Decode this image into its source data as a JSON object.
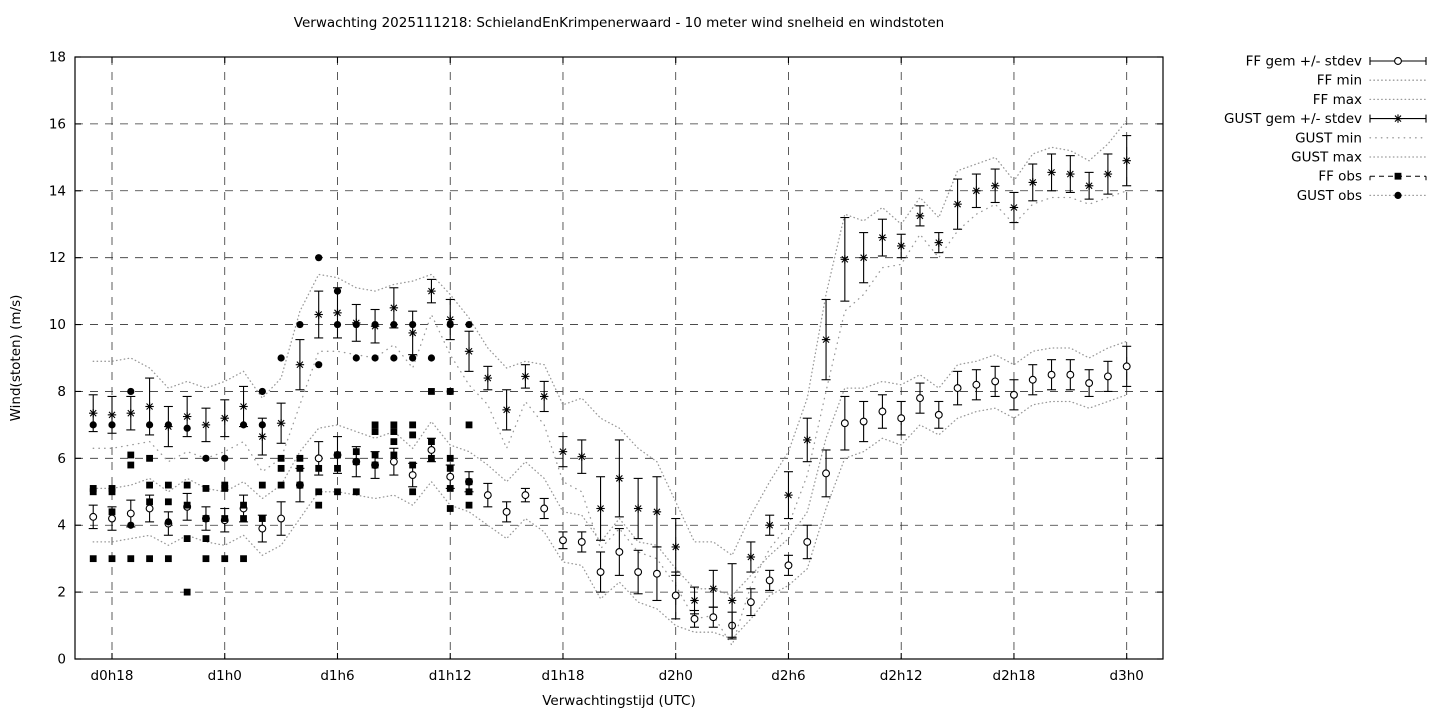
{
  "title": "Verwachting 2025111218: SchielandEnKrimpenerwaard - 10 meter wind snelheid en windstoten",
  "axes": {
    "xlabel": "Verwachtingstijd (UTC)",
    "ylabel": "Wind(stoten) (m/s)",
    "ymin": 0,
    "ymax": 18,
    "ytick_step": 2,
    "grid": true,
    "xticks": [
      {
        "t": 18,
        "label": "d0h18"
      },
      {
        "t": 24,
        "label": "d1h0"
      },
      {
        "t": 30,
        "label": "d1h6"
      },
      {
        "t": 36,
        "label": "d1h12"
      },
      {
        "t": 42,
        "label": "d1h18"
      },
      {
        "t": 48,
        "label": "d2h0"
      },
      {
        "t": 54,
        "label": "d2h6"
      },
      {
        "t": 60,
        "label": "d2h12"
      },
      {
        "t": 66,
        "label": "d2h18"
      },
      {
        "t": 72,
        "label": "d3h0"
      }
    ]
  },
  "legend": {
    "position": "top-right-outside",
    "entries": [
      {
        "label": "FF gem +/- stdev",
        "series": "ff_gem",
        "style": "errorbar-line",
        "marker": "circle-open"
      },
      {
        "label": "FF min",
        "series": "ff_min",
        "style": "dotted",
        "marker": "none"
      },
      {
        "label": "FF max",
        "series": "ff_max",
        "style": "dotted",
        "marker": "none"
      },
      {
        "label": "GUST gem +/- stdev",
        "series": "gust_gem",
        "style": "errorbar-line",
        "marker": "asterisk"
      },
      {
        "label": "GUST min",
        "series": "gust_min",
        "style": "dotted-sparse",
        "marker": "none"
      },
      {
        "label": "GUST max",
        "series": "gust_max",
        "style": "dotted",
        "marker": "none"
      },
      {
        "label": "FF obs",
        "series": "ff_obs",
        "style": "dashed",
        "marker": "square-filled"
      },
      {
        "label": "GUST obs",
        "series": "gust_obs",
        "style": "dotted",
        "marker": "circle-filled"
      }
    ]
  },
  "colors": {
    "axis": "#000000",
    "grid": "#333333",
    "series": "#000000",
    "envelope": "#999999"
  },
  "chart_data": {
    "type": "line",
    "title": "Verwachting 2025111218: SchielandEnKrimpenerwaard - 10 meter wind snelheid en windstoten",
    "xlabel": "Verwachtingstijd (UTC)",
    "ylabel": "Wind(stoten) (m/s)",
    "ylim": [
      0,
      18
    ],
    "x_hours_note": "t = forecast hour index; d0h18 -> t=18, d3h0 -> t=72",
    "hour_start": 17,
    "hours": [
      17,
      18,
      19,
      20,
      21,
      22,
      23,
      24,
      25,
      26,
      27,
      28,
      29,
      30,
      31,
      32,
      33,
      34,
      35,
      36,
      37,
      38,
      39,
      40,
      41,
      42,
      43,
      44,
      45,
      46,
      47,
      48,
      49,
      50,
      51,
      52,
      53,
      54,
      55,
      56,
      57,
      58,
      59,
      60,
      61,
      62,
      63,
      64,
      65,
      66,
      67,
      68,
      69,
      70,
      71,
      72
    ],
    "series": [
      {
        "name": "FF gem",
        "key": "ff_gem",
        "values": [
          4.25,
          4.2,
          4.35,
          4.5,
          4.05,
          4.55,
          4.2,
          4.15,
          4.5,
          3.9,
          4.2,
          5.2,
          6.0,
          6.1,
          5.9,
          5.8,
          5.9,
          5.5,
          6.25,
          5.45,
          5.3,
          4.9,
          4.4,
          4.9,
          4.5,
          3.55,
          3.5,
          2.6,
          3.2,
          2.6,
          2.55,
          1.9,
          1.2,
          1.25,
          1.0,
          1.7,
          2.35,
          2.8,
          3.5,
          5.55,
          7.05,
          7.1,
          7.4,
          7.2,
          7.8,
          7.3,
          8.1,
          8.2,
          8.3,
          7.9,
          8.35,
          8.5,
          8.5,
          8.25,
          8.45,
          8.75
        ],
        "stdev": [
          0.35,
          0.35,
          0.4,
          0.4,
          0.35,
          0.4,
          0.35,
          0.35,
          0.4,
          0.4,
          0.5,
          0.5,
          0.5,
          0.55,
          0.45,
          0.4,
          0.4,
          0.35,
          0.35,
          0.35,
          0.3,
          0.35,
          0.3,
          0.2,
          0.3,
          0.25,
          0.3,
          0.6,
          0.7,
          0.65,
          0.8,
          0.7,
          0.25,
          0.3,
          0.4,
          0.4,
          0.3,
          0.3,
          0.5,
          0.7,
          0.8,
          0.6,
          0.5,
          0.5,
          0.45,
          0.4,
          0.5,
          0.45,
          0.45,
          0.45,
          0.45,
          0.45,
          0.45,
          0.4,
          0.45,
          0.6
        ]
      },
      {
        "name": "GUST gem",
        "key": "gust_gem",
        "values": [
          7.35,
          7.3,
          7.35,
          7.55,
          6.95,
          7.25,
          7.0,
          7.2,
          7.55,
          6.65,
          7.05,
          8.8,
          10.3,
          10.35,
          10.05,
          9.95,
          10.5,
          9.75,
          11.0,
          10.15,
          9.2,
          8.4,
          7.45,
          8.45,
          7.85,
          6.2,
          6.05,
          4.5,
          5.4,
          4.5,
          4.4,
          3.35,
          1.75,
          2.1,
          1.75,
          3.05,
          4.0,
          4.9,
          6.55,
          9.55,
          11.95,
          12.0,
          12.6,
          12.35,
          13.25,
          12.45,
          13.6,
          14.0,
          14.15,
          13.5,
          14.25,
          14.55,
          14.5,
          14.15,
          14.5,
          14.9
        ],
        "stdev": [
          0.55,
          0.55,
          0.5,
          0.85,
          0.6,
          0.6,
          0.5,
          0.55,
          0.6,
          0.55,
          0.6,
          0.75,
          0.7,
          0.75,
          0.55,
          0.5,
          0.6,
          0.65,
          0.35,
          0.6,
          0.6,
          0.35,
          0.6,
          0.35,
          0.45,
          0.45,
          0.5,
          0.95,
          1.15,
          0.9,
          1.05,
          0.85,
          0.4,
          0.55,
          1.1,
          0.45,
          0.3,
          0.7,
          0.65,
          1.2,
          1.25,
          0.75,
          0.55,
          0.35,
          0.3,
          0.3,
          0.75,
          0.5,
          0.5,
          0.45,
          0.55,
          0.55,
          0.55,
          0.4,
          0.6,
          0.75
        ]
      },
      {
        "name": "FF min",
        "key": "ff_min",
        "values": [
          3.5,
          3.5,
          3.6,
          3.7,
          3.4,
          3.7,
          3.5,
          3.4,
          3.7,
          3.1,
          3.4,
          4.2,
          5.0,
          5.0,
          4.9,
          4.8,
          4.9,
          4.6,
          5.3,
          4.6,
          4.4,
          4.0,
          3.6,
          4.2,
          3.8,
          2.9,
          2.8,
          1.8,
          2.3,
          1.7,
          1.5,
          1.0,
          0.8,
          0.8,
          0.6,
          1.2,
          1.9,
          2.2,
          2.7,
          4.5,
          6.0,
          6.2,
          6.6,
          6.4,
          7.0,
          6.7,
          7.2,
          7.4,
          7.5,
          7.2,
          7.6,
          7.7,
          7.7,
          7.5,
          7.7,
          7.9
        ]
      },
      {
        "name": "FF max",
        "key": "ff_max",
        "values": [
          5.1,
          5.1,
          5.2,
          5.4,
          5.0,
          5.4,
          5.1,
          5.0,
          5.3,
          4.8,
          5.2,
          6.2,
          6.9,
          7.0,
          6.8,
          6.6,
          6.8,
          6.3,
          7.1,
          6.4,
          6.2,
          5.8,
          5.3,
          5.9,
          5.4,
          4.4,
          4.3,
          3.5,
          4.2,
          3.5,
          3.4,
          2.7,
          2.1,
          2.1,
          1.9,
          2.5,
          3.1,
          3.6,
          4.4,
          6.6,
          8.1,
          8.1,
          8.3,
          8.2,
          8.5,
          8.1,
          8.8,
          8.9,
          9.1,
          8.8,
          9.2,
          9.3,
          9.3,
          9.0,
          9.3,
          9.5
        ]
      },
      {
        "name": "GUST min",
        "key": "gust_min",
        "values": [
          6.3,
          6.3,
          6.4,
          6.5,
          5.9,
          6.2,
          6.0,
          6.2,
          6.5,
          5.6,
          6.0,
          7.6,
          9.2,
          9.2,
          9.1,
          9.0,
          9.4,
          8.7,
          10.3,
          9.1,
          8.2,
          7.6,
          6.3,
          7.7,
          7.0,
          5.3,
          5.0,
          3.3,
          3.9,
          3.2,
          3.0,
          2.2,
          1.2,
          1.3,
          0.4,
          2.2,
          3.3,
          4.0,
          5.5,
          8.0,
          10.4,
          10.9,
          11.7,
          11.8,
          12.7,
          12.0,
          12.8,
          13.3,
          13.6,
          13.0,
          13.6,
          13.8,
          13.8,
          13.6,
          13.8,
          14.0
        ]
      },
      {
        "name": "GUST max",
        "key": "gust_max",
        "values": [
          8.9,
          8.9,
          9.0,
          8.7,
          8.1,
          8.3,
          8.1,
          8.3,
          8.6,
          7.8,
          8.4,
          10.4,
          11.5,
          11.4,
          11.1,
          11.0,
          11.2,
          11.3,
          11.5,
          10.9,
          10.2,
          9.3,
          8.7,
          8.9,
          8.8,
          7.6,
          7.8,
          7.2,
          6.9,
          6.3,
          5.9,
          4.7,
          3.5,
          3.5,
          3.1,
          4.3,
          5.3,
          6.2,
          7.8,
          10.9,
          13.3,
          13.1,
          13.5,
          13.0,
          13.8,
          13.2,
          14.6,
          14.8,
          15.0,
          14.3,
          15.1,
          15.3,
          15.2,
          14.9,
          15.4,
          16.1
        ]
      }
    ],
    "observations": {
      "ff_obs": {
        "17": [
          5.1,
          5.0,
          3.0
        ],
        "18": [
          5.1,
          5.0,
          4.4,
          3.0
        ],
        "19": [
          6.1,
          5.8,
          3.0
        ],
        "20": [
          6.0,
          5.2,
          4.7,
          3.0
        ],
        "21": [
          5.2,
          4.7,
          3.0
        ],
        "22": [
          5.2,
          4.6,
          3.6,
          2.0
        ],
        "23": [
          5.1,
          4.2,
          3.6,
          3.0
        ],
        "24": [
          5.2,
          5.1,
          4.2,
          3.0
        ],
        "25": [
          4.6,
          4.2,
          3.0
        ],
        "26": [
          5.2,
          4.2
        ],
        "27": [
          6.0,
          5.7,
          5.2
        ],
        "28": [
          6.0,
          5.7,
          5.2
        ],
        "29": [
          5.7,
          5.0,
          4.6
        ],
        "30": [
          6.1,
          5.7,
          5.0
        ],
        "31": [
          6.2,
          5.9,
          5.0
        ],
        "32": [
          7.0,
          6.8,
          6.1,
          5.8
        ],
        "33": [
          7.0,
          6.8,
          6.5,
          6.1
        ],
        "34": [
          7.0,
          6.7,
          5.8,
          5.0
        ],
        "35": [
          8.0,
          6.5,
          6.0
        ],
        "36": [
          8.0,
          6.0,
          5.7,
          5.1,
          4.5
        ],
        "37": [
          7.0,
          5.3,
          5.0,
          4.6
        ]
      },
      "gust_obs": {
        "17": [
          7.0
        ],
        "18": [
          7.0
        ],
        "19": [
          8.0,
          4.0
        ],
        "20": [
          7.0
        ],
        "21": [
          7.0,
          4.1
        ],
        "22": [
          6.9
        ],
        "23": [
          6.0
        ],
        "24": [
          6.0
        ],
        "25": [
          7.0
        ],
        "26": [
          8.0,
          7.0
        ],
        "27": [
          9.0
        ],
        "28": [
          10.0
        ],
        "29": [
          12.0,
          8.8
        ],
        "30": [
          11.0,
          10.0
        ],
        "31": [
          10.0,
          9.0
        ],
        "32": [
          10.0,
          9.0
        ],
        "33": [
          10.0,
          9.0
        ],
        "34": [
          10.0,
          9.0
        ],
        "35": [
          9.0
        ],
        "36": [
          10.0,
          8.0
        ],
        "37": [
          10.0
        ]
      }
    }
  }
}
